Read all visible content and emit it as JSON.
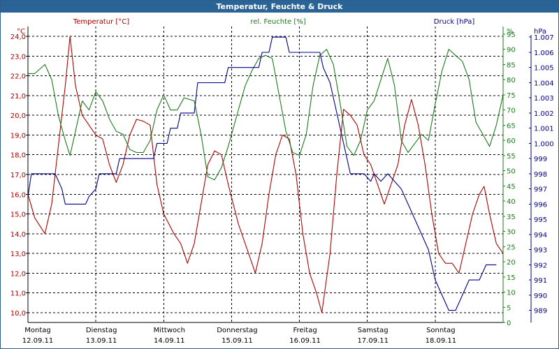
{
  "window": {
    "title": "Temperatur, Feuchte & Druck"
  },
  "colors": {
    "temp": "#b00000",
    "hum": "#1e7a1e",
    "press": "#00008b",
    "title_bg": "#2a6496"
  },
  "chart_data": {
    "type": "line",
    "title": "Temperatur, Feuchte & Druck",
    "x_labels": [
      {
        "day": "Montag",
        "date": "12.09.11"
      },
      {
        "day": "Dienstag",
        "date": "13.09.11"
      },
      {
        "day": "Mittwoch",
        "date": "14.09.11"
      },
      {
        "day": "Donnerstag",
        "date": "15.09.11"
      },
      {
        "day": "Freitag",
        "date": "16.09.11"
      },
      {
        "day": "Samstag",
        "date": "17.09.11"
      },
      {
        "day": "Sonntag",
        "date": "18.09.11"
      }
    ],
    "x_range": [
      0,
      7
    ],
    "axes": {
      "temp": {
        "label": "Temperatur [°C]",
        "unit": "°C",
        "min": 9.5,
        "max": 24.5,
        "ticks": [
          "10,0",
          "11,0",
          "12,0",
          "13,0",
          "14,0",
          "15,0",
          "16,0",
          "17,0",
          "18,0",
          "19,0",
          "20,0",
          "21,0",
          "22,0",
          "23,0",
          "24,0"
        ]
      },
      "hum": {
        "label": "rel. Feuchte [%]",
        "unit": "%",
        "min": 0,
        "max": 97.5,
        "ticks": [
          "0",
          "5",
          "10",
          "15",
          "20",
          "25",
          "30",
          "35",
          "40",
          "45",
          "50",
          "55",
          "60",
          "65",
          "70",
          "75",
          "80",
          "85",
          "90",
          "95"
        ]
      },
      "press": {
        "label": "Druck [hPa]",
        "unit": "hPa",
        "min": 988.2,
        "max": 1007.7,
        "ticks": [
          "989",
          "990",
          "991",
          "992",
          "993",
          "994",
          "995",
          "996",
          "997",
          "998",
          "999",
          "1.000",
          "1.001",
          "1.002",
          "1.003",
          "1.004",
          "1.005",
          "1.006",
          "1.007"
        ]
      }
    },
    "series": [
      {
        "name": "Temperatur [°C]",
        "axis": "temp",
        "color": "#b00000",
        "points": [
          [
            0,
            16.0
          ],
          [
            0.1,
            14.8
          ],
          [
            0.25,
            14.0
          ],
          [
            0.35,
            15.5
          ],
          [
            0.45,
            18.5
          ],
          [
            0.55,
            21.5
          ],
          [
            0.62,
            24.0
          ],
          [
            0.7,
            21.5
          ],
          [
            0.8,
            20.0
          ],
          [
            0.9,
            19.5
          ],
          [
            1.0,
            19.0
          ],
          [
            1.1,
            18.8
          ],
          [
            1.2,
            17.5
          ],
          [
            1.3,
            16.6
          ],
          [
            1.4,
            17.5
          ],
          [
            1.5,
            19.0
          ],
          [
            1.6,
            19.8
          ],
          [
            1.7,
            19.7
          ],
          [
            1.8,
            19.5
          ],
          [
            1.9,
            16.5
          ],
          [
            2.0,
            15.0
          ],
          [
            2.15,
            14.0
          ],
          [
            2.25,
            13.5
          ],
          [
            2.35,
            12.5
          ],
          [
            2.45,
            13.5
          ],
          [
            2.55,
            15.5
          ],
          [
            2.65,
            17.5
          ],
          [
            2.75,
            18.2
          ],
          [
            2.85,
            18.0
          ],
          [
            2.95,
            16.5
          ],
          [
            3.1,
            14.5
          ],
          [
            3.25,
            13.0
          ],
          [
            3.35,
            12.0
          ],
          [
            3.45,
            13.5
          ],
          [
            3.55,
            16.0
          ],
          [
            3.65,
            18.0
          ],
          [
            3.75,
            19.0
          ],
          [
            3.85,
            18.8
          ],
          [
            3.95,
            17.0
          ],
          [
            4.05,
            14.0
          ],
          [
            4.15,
            12.0
          ],
          [
            4.25,
            11.0
          ],
          [
            4.33,
            10.0
          ],
          [
            4.45,
            13.0
          ],
          [
            4.55,
            17.0
          ],
          [
            4.65,
            20.3
          ],
          [
            4.75,
            20.0
          ],
          [
            4.85,
            19.5
          ],
          [
            4.95,
            18.0
          ],
          [
            5.05,
            17.5
          ],
          [
            5.15,
            16.5
          ],
          [
            5.25,
            15.5
          ],
          [
            5.35,
            16.5
          ],
          [
            5.45,
            17.5
          ],
          [
            5.55,
            19.5
          ],
          [
            5.65,
            20.8
          ],
          [
            5.75,
            19.5
          ],
          [
            5.85,
            17.5
          ],
          [
            5.95,
            15.0
          ],
          [
            6.05,
            13.0
          ],
          [
            6.15,
            12.5
          ],
          [
            6.25,
            12.5
          ],
          [
            6.35,
            12.0
          ],
          [
            6.45,
            13.5
          ],
          [
            6.55,
            15.0
          ],
          [
            6.65,
            16.0
          ],
          [
            6.72,
            16.4
          ],
          [
            6.8,
            15.0
          ],
          [
            6.9,
            13.5
          ],
          [
            7.0,
            13.0
          ]
        ]
      },
      {
        "name": "rel. Feuchte [%]",
        "axis": "hum",
        "color": "#1e7a1e",
        "points": [
          [
            0,
            82
          ],
          [
            0.1,
            82
          ],
          [
            0.25,
            85
          ],
          [
            0.35,
            80
          ],
          [
            0.45,
            68
          ],
          [
            0.55,
            60
          ],
          [
            0.62,
            55
          ],
          [
            0.7,
            63
          ],
          [
            0.8,
            73
          ],
          [
            0.9,
            70
          ],
          [
            1.0,
            76
          ],
          [
            1.1,
            73
          ],
          [
            1.2,
            67
          ],
          [
            1.3,
            63
          ],
          [
            1.4,
            62
          ],
          [
            1.5,
            57
          ],
          [
            1.6,
            56
          ],
          [
            1.7,
            56
          ],
          [
            1.8,
            60
          ],
          [
            1.9,
            70
          ],
          [
            2.0,
            75
          ],
          [
            2.1,
            70
          ],
          [
            2.2,
            70
          ],
          [
            2.3,
            74
          ],
          [
            2.45,
            73
          ],
          [
            2.55,
            62
          ],
          [
            2.65,
            48
          ],
          [
            2.75,
            47
          ],
          [
            2.85,
            51
          ],
          [
            2.95,
            58
          ],
          [
            3.1,
            70
          ],
          [
            3.2,
            78
          ],
          [
            3.3,
            83
          ],
          [
            3.4,
            87
          ],
          [
            3.5,
            88
          ],
          [
            3.6,
            87
          ],
          [
            3.7,
            75
          ],
          [
            3.8,
            63
          ],
          [
            3.9,
            56
          ],
          [
            4.0,
            55
          ],
          [
            4.1,
            62
          ],
          [
            4.2,
            78
          ],
          [
            4.3,
            88
          ],
          [
            4.4,
            90
          ],
          [
            4.5,
            85
          ],
          [
            4.6,
            72
          ],
          [
            4.7,
            58
          ],
          [
            4.8,
            55
          ],
          [
            4.9,
            60
          ],
          [
            5.0,
            70
          ],
          [
            5.1,
            73
          ],
          [
            5.2,
            80
          ],
          [
            5.3,
            87
          ],
          [
            5.4,
            78
          ],
          [
            5.5,
            60
          ],
          [
            5.6,
            56
          ],
          [
            5.7,
            59
          ],
          [
            5.8,
            62
          ],
          [
            5.9,
            60
          ],
          [
            6.0,
            72
          ],
          [
            6.1,
            83
          ],
          [
            6.2,
            90
          ],
          [
            6.3,
            88
          ],
          [
            6.4,
            86
          ],
          [
            6.5,
            80
          ],
          [
            6.6,
            66
          ],
          [
            6.7,
            62
          ],
          [
            6.8,
            58
          ],
          [
            6.9,
            65
          ],
          [
            7.0,
            75
          ]
        ]
      },
      {
        "name": "Druck [hPa]",
        "axis": "press",
        "color": "#00008b",
        "points": [
          [
            0,
            996.5
          ],
          [
            0.05,
            998
          ],
          [
            0.4,
            998
          ],
          [
            0.5,
            997
          ],
          [
            0.55,
            996
          ],
          [
            0.85,
            996
          ],
          [
            0.9,
            996.5
          ],
          [
            1.0,
            997
          ],
          [
            1.05,
            998
          ],
          [
            1.3,
            998
          ],
          [
            1.35,
            999
          ],
          [
            1.85,
            999
          ],
          [
            1.9,
            1000
          ],
          [
            2.05,
            1000
          ],
          [
            2.1,
            1001
          ],
          [
            2.2,
            1001
          ],
          [
            2.25,
            1002
          ],
          [
            2.45,
            1002
          ],
          [
            2.5,
            1004
          ],
          [
            2.9,
            1004
          ],
          [
            2.95,
            1005
          ],
          [
            3.4,
            1005
          ],
          [
            3.45,
            1006
          ],
          [
            3.55,
            1006
          ],
          [
            3.6,
            1007
          ],
          [
            3.8,
            1007
          ],
          [
            3.85,
            1006
          ],
          [
            4.3,
            1006
          ],
          [
            4.35,
            1005
          ],
          [
            4.45,
            1004
          ],
          [
            4.55,
            1002
          ],
          [
            4.65,
            1000
          ],
          [
            4.75,
            998
          ],
          [
            4.85,
            998
          ],
          [
            4.95,
            998
          ],
          [
            5.05,
            997.5
          ],
          [
            5.1,
            998
          ],
          [
            5.2,
            997.5
          ],
          [
            5.3,
            998
          ],
          [
            5.4,
            997.5
          ],
          [
            5.5,
            997
          ],
          [
            5.6,
            996
          ],
          [
            5.7,
            995
          ],
          [
            5.8,
            994
          ],
          [
            5.9,
            993
          ],
          [
            6.0,
            991
          ],
          [
            6.1,
            990
          ],
          [
            6.2,
            989
          ],
          [
            6.3,
            989
          ],
          [
            6.4,
            990
          ],
          [
            6.5,
            991
          ],
          [
            6.65,
            991
          ],
          [
            6.75,
            992
          ],
          [
            6.9,
            992
          ]
        ]
      }
    ]
  }
}
